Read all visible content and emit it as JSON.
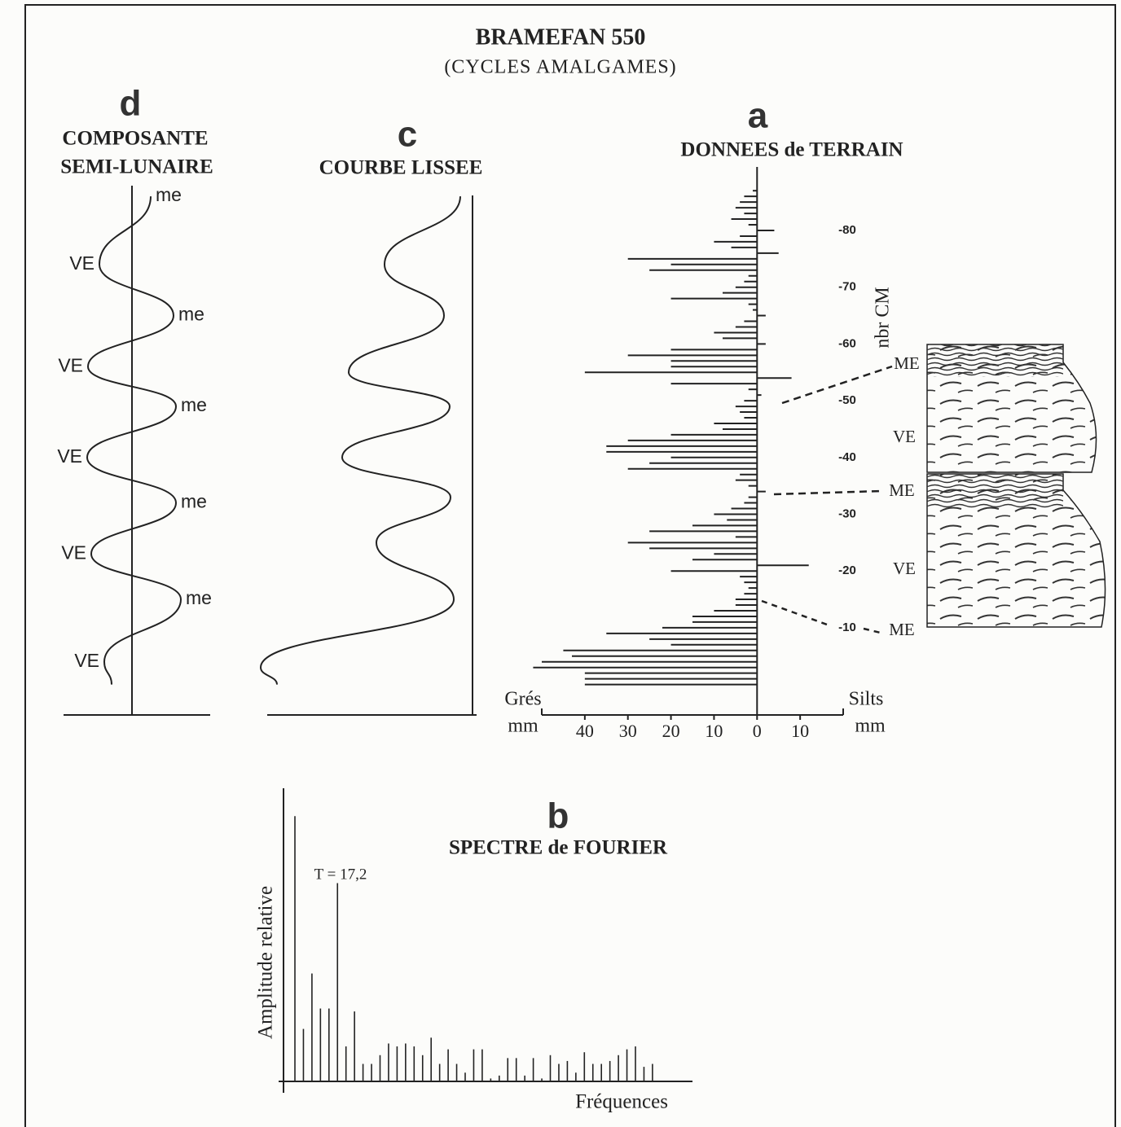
{
  "title": "BRAMEFAN 550",
  "subtitle": "(CYCLES AMALGAMES)",
  "chart_data": [
    {
      "type": "hbar",
      "label": "a",
      "title": "DONNEES de TERRAIN",
      "x_left_label": [
        "Grés",
        "mm"
      ],
      "x_right_label": [
        "Silts",
        "mm"
      ],
      "y_label": "nbr CM",
      "xlim": [
        -50,
        20
      ],
      "xticks": [
        {
          "value": -40,
          "label": "40"
        },
        {
          "value": -30,
          "label": "30"
        },
        {
          "value": -20,
          "label": "20"
        },
        {
          "value": -10,
          "label": "10"
        },
        0,
        10
      ],
      "ylim": [
        0,
        -87
      ],
      "yticks": [
        -80,
        -70,
        -60,
        -50,
        -40,
        -30,
        -20,
        -10
      ],
      "x": [
        -87,
        -86,
        -85,
        -84,
        -83,
        -82,
        -81,
        -80,
        -79,
        -78,
        -77,
        -76,
        -75,
        -74,
        -73,
        -72,
        -71,
        -70,
        -69,
        -68,
        -67,
        -66,
        -65,
        -64,
        -63,
        -62,
        -61,
        -60,
        -59,
        -58,
        -57,
        -56,
        -55,
        -54,
        -53,
        -52,
        -51,
        -50,
        -49,
        -48,
        -47,
        -46,
        -45,
        -44,
        -43,
        -42,
        -41,
        -40,
        -39,
        -38,
        -37,
        -36,
        -35,
        -34,
        -33,
        -32,
        -31,
        -30,
        -29,
        -28,
        -27,
        -26,
        -25,
        -24,
        -23,
        -22,
        -21,
        -20,
        -19,
        -18,
        -17,
        -16,
        -15,
        -14,
        -13,
        -12,
        -11,
        -10,
        -9,
        -8,
        -7,
        -6,
        -5,
        -4,
        -3,
        -2,
        -1,
        0
      ],
      "values": [
        -1,
        -3,
        -4,
        -5,
        -3,
        -6,
        -2,
        4,
        -4,
        -10,
        -6,
        5,
        -30,
        -20,
        -25,
        -2,
        -3,
        -5,
        -8,
        -20,
        -2,
        -1,
        2,
        -3,
        -5,
        -10,
        -8,
        2,
        -20,
        -30,
        -20,
        -20,
        -40,
        8,
        -20,
        -2,
        1,
        -3,
        -5,
        -4,
        -3,
        -10,
        -8,
        -20,
        -30,
        -35,
        -35,
        -20,
        -25,
        -30,
        -4,
        -5,
        -2,
        2,
        -2,
        -3,
        -6,
        -10,
        -7,
        -15,
        -25,
        -5,
        -30,
        -25,
        -10,
        -15,
        12,
        -20,
        -4,
        -3,
        -2,
        -3,
        -5,
        -5,
        -10,
        -15,
        -15,
        -22,
        -35,
        -25,
        -20,
        -45,
        -43,
        -50,
        -52,
        -40,
        -40,
        -40
      ],
      "color": "#222",
      "annotations": [
        "ME",
        "VE",
        "ME",
        "VE",
        "ME"
      ]
    },
    {
      "type": "curve",
      "label": "c",
      "title": "COURBE LISSEE",
      "x": [
        -86,
        -74,
        -65,
        -55,
        -49,
        -40,
        -33,
        -25,
        -15,
        -3,
        0
      ],
      "values": [
        -15,
        -108,
        -35,
        -152,
        -28,
        -160,
        -27,
        -118,
        -23,
        -260,
        -240
      ],
      "color": "#222"
    },
    {
      "type": "curve",
      "label": "d",
      "title": [
        "COMPOSANTE",
        "SEMI-LUNAIRE"
      ],
      "x": [
        -86,
        -74,
        -65,
        -56,
        -49,
        -40,
        -32,
        -23,
        -15,
        -4,
        0
      ],
      "values": [
        23,
        -40,
        51,
        -54,
        54,
        -55,
        54,
        -50,
        60,
        -34,
        -25
      ],
      "point_labels": [
        "me",
        "VE",
        "me",
        "VE",
        "me",
        "VE",
        "me",
        "VE",
        "me",
        "VE",
        null
      ],
      "color": "#222"
    },
    {
      "type": "spectrum",
      "label": "b",
      "title": "SPECTRE de FOURIER",
      "x_label": "Fréquences",
      "y_label": "Amplitude relative",
      "annotation": "T = 17,2",
      "ylim": [
        0,
        100
      ],
      "values": [
        91,
        18,
        37,
        25,
        25,
        68,
        12,
        24,
        6,
        6,
        9,
        13,
        12,
        13,
        12,
        9,
        15,
        6,
        11,
        6,
        3,
        11,
        11,
        1,
        2,
        8,
        8,
        2,
        8,
        1,
        9,
        6,
        7,
        3,
        10,
        6,
        6,
        7,
        9,
        11,
        12,
        5,
        6
      ],
      "color": "#222"
    }
  ]
}
